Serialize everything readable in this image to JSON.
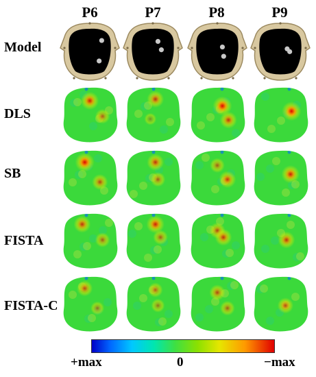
{
  "columns": [
    "P6",
    "P7",
    "P8",
    "P9"
  ],
  "rows": [
    "Model",
    "DLS",
    "SB",
    "FISTA",
    "FISTA-C"
  ],
  "colorbar": {
    "left": "+max",
    "center": "0",
    "right": "−max"
  },
  "colors": {
    "background_field": "#3bd93b",
    "hot": "#e00000",
    "cold": "#0066ff",
    "model_cavity": "#000000",
    "model_bone": "#d8c8a0",
    "inclusion": "#c8c8c8"
  },
  "inclusions": {
    "P6": [
      [
        0.78,
        0.28
      ],
      [
        0.72,
        0.72
      ]
    ],
    "P7": [
      [
        0.62,
        0.3
      ],
      [
        0.7,
        0.48
      ]
    ],
    "P8": [
      [
        0.62,
        0.42
      ],
      [
        0.65,
        0.62
      ]
    ],
    "P9": [
      [
        0.66,
        0.46
      ],
      [
        0.72,
        0.52
      ]
    ]
  },
  "blobs": {
    "DLS": {
      "P6": [
        [
          0.5,
          0.25,
          0.9
        ],
        [
          0.75,
          0.55,
          0.6
        ]
      ],
      "P7": [
        [
          0.55,
          0.22,
          0.8
        ],
        [
          0.45,
          0.6,
          0.35
        ]
      ],
      "P8": [
        [
          0.6,
          0.35,
          1.0
        ],
        [
          0.72,
          0.62,
          0.8
        ]
      ],
      "P9": [
        [
          0.72,
          0.45,
          1.0
        ]
      ]
    },
    "SB": {
      "P6": [
        [
          0.4,
          0.22,
          1.0
        ],
        [
          0.7,
          0.6,
          0.7
        ]
      ],
      "P7": [
        [
          0.55,
          0.22,
          0.8
        ],
        [
          0.6,
          0.55,
          0.6
        ]
      ],
      "P8": [
        [
          0.5,
          0.28,
          0.6
        ],
        [
          0.7,
          0.55,
          0.8
        ]
      ],
      "P9": [
        [
          0.7,
          0.45,
          0.9
        ]
      ]
    },
    "FISTA": {
      "P6": [
        [
          0.35,
          0.2,
          0.8
        ],
        [
          0.75,
          0.5,
          0.6
        ]
      ],
      "P7": [
        [
          0.55,
          0.2,
          0.9
        ],
        [
          0.65,
          0.45,
          0.6
        ]
      ],
      "P8": [
        [
          0.5,
          0.32,
          0.7
        ],
        [
          0.62,
          0.45,
          0.8
        ]
      ],
      "P9": [
        [
          0.62,
          0.5,
          0.8
        ]
      ]
    },
    "FISTA-C": {
      "P6": [
        [
          0.4,
          0.22,
          0.7
        ],
        [
          0.65,
          0.6,
          0.5
        ]
      ],
      "P7": [
        [
          0.55,
          0.25,
          0.6
        ],
        [
          0.6,
          0.55,
          0.5
        ]
      ],
      "P8": [
        [
          0.5,
          0.3,
          0.7
        ],
        [
          0.7,
          0.6,
          0.6
        ]
      ],
      "P9": [
        [
          0.6,
          0.55,
          0.7
        ]
      ]
    }
  }
}
